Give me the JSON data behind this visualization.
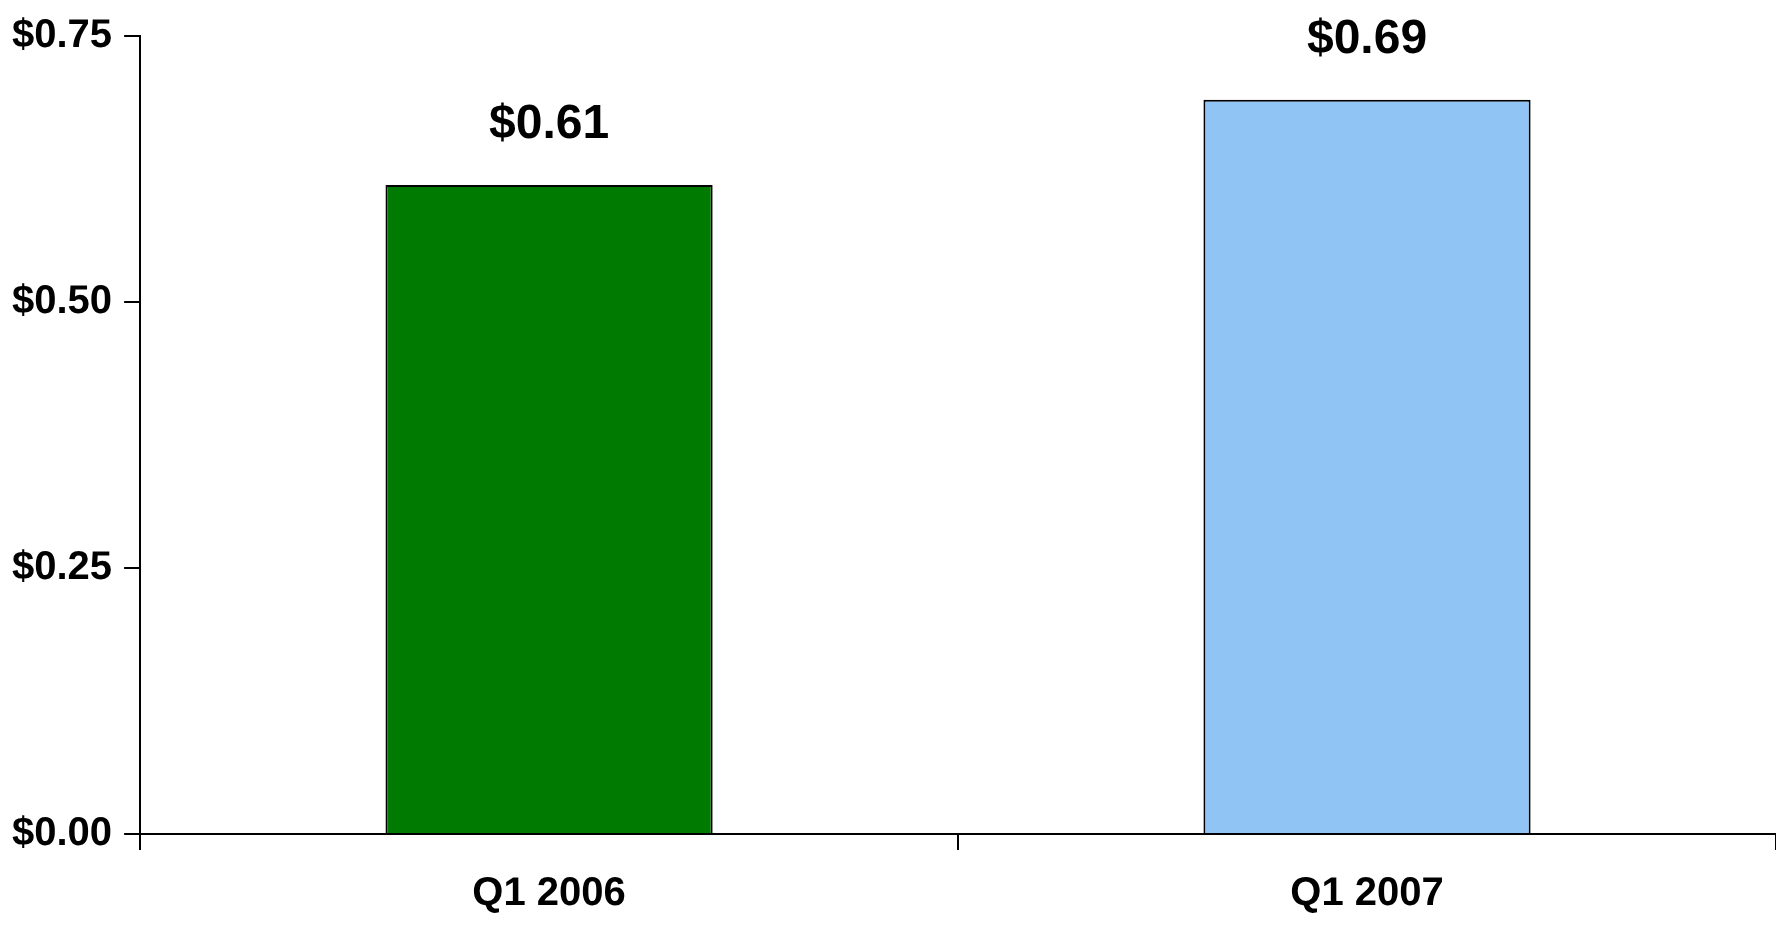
{
  "chart_data": {
    "type": "bar",
    "categories": [
      "Q1 2006",
      "Q1 2007"
    ],
    "values": [
      0.61,
      0.69
    ],
    "colors": [
      "#007a00",
      "#8fc4f5"
    ],
    "value_labels": [
      "$0.61",
      "$0.69"
    ],
    "ylim": [
      0,
      0.75
    ],
    "yticks": [
      {
        "value": 0,
        "label": "$0.00"
      },
      {
        "value": 0.25,
        "label": "$0.25"
      },
      {
        "value": 0.5,
        "label": "$0.50"
      },
      {
        "value": 0.75,
        "label": "$0.75"
      }
    ],
    "grid": false,
    "legend": false
  }
}
